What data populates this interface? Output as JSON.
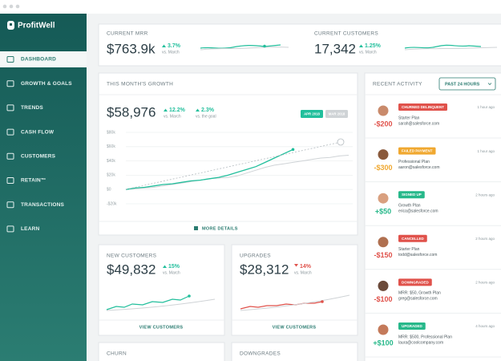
{
  "sidebar": {
    "logo": "ProfitWell",
    "nav": [
      "DASHBOARD",
      "GROWTH & GOALS",
      "TRENDS",
      "CASH FLOW",
      "CUSTOMERS",
      "RETAIN™",
      "TRANSACTIONS",
      "LEARN"
    ]
  },
  "summary": {
    "mrr": {
      "label": "CURRENT MRR",
      "value": "$763.9k",
      "change": "3.7%",
      "compare": "vs. March"
    },
    "customers": {
      "label": "CURRENT CUSTOMERS",
      "value": "17,342",
      "change": "1.25%",
      "compare": "vs. March"
    }
  },
  "growth": {
    "title": "THIS MONTH'S GROWTH",
    "value": "$58,976",
    "changes": [
      {
        "change": "12.2%",
        "compare": "vs. March"
      },
      {
        "change": "2.3%",
        "compare": "vs. the goal"
      }
    ],
    "link": "MORE DETAILS"
  },
  "chart_data": {
    "type": "line",
    "series": [
      {
        "name": "APR 2018",
        "color": "#22bf9c",
        "values": [
          0,
          2000,
          3000,
          5000,
          7000,
          8000,
          10000,
          12000,
          13000,
          15000,
          17000,
          20000,
          24000,
          28000,
          32000,
          38000,
          44000,
          50000,
          56000
        ]
      },
      {
        "name": "MAR 2018",
        "color": "#cfd3d6",
        "values": [
          0,
          1000,
          2000,
          3000,
          5000,
          7000,
          9000,
          11000,
          13000,
          15000,
          16000,
          17000,
          19000,
          23000,
          27000,
          31000,
          34000,
          36000,
          38000,
          40000,
          42000,
          44000,
          45000,
          47000,
          48000
        ]
      }
    ],
    "ylim": [
      -20000,
      80000
    ],
    "yticks": [
      {
        "value": -20000,
        "label": "-$20k"
      },
      {
        "value": 0,
        "label": "$0"
      },
      {
        "value": 20000,
        "label": "$20k"
      },
      {
        "value": 40000,
        "label": "$40k"
      },
      {
        "value": 60000,
        "label": "$60k"
      },
      {
        "value": 80000,
        "label": "$80k"
      }
    ],
    "grid": true
  },
  "new_customers": {
    "title": "NEW CUSTOMERS",
    "value": "$49,832",
    "change": "15%",
    "compare": "vs. March",
    "link": "VIEW CUSTOMERS"
  },
  "upgrades": {
    "title": "UPGRADES",
    "value": "$28,312",
    "change": "14%",
    "compare": "vs. March",
    "link": "VIEW CUSTOMERS"
  },
  "churn": {
    "title": "CHURN"
  },
  "downgrades": {
    "title": "DOWNGRADES"
  },
  "activity": {
    "title": "RECENT ACTIVITY",
    "filter": "PAST 24 HOURS",
    "items": [
      {
        "status": "CHURNED DELINQUENT",
        "amount": "-$200",
        "plan": "Starter Plan",
        "email": "sarah@salesforce.com",
        "time": "1 hour ago"
      },
      {
        "status": "FAILED PAYMENT",
        "amount": "-$300",
        "plan": "Professional Plan",
        "email": "aaron@salesforce.com",
        "time": "1 hour ago"
      },
      {
        "status": "SIGNED UP",
        "amount": "+$50",
        "plan": "Growth Plan",
        "email": "erica@salesforce.com",
        "time": "2 hours ago"
      },
      {
        "status": "CANCELLED",
        "amount": "-$150",
        "plan": "Starter Plan",
        "email": "todd@salesforce.com",
        "time": "2 hours ago"
      },
      {
        "status": "DOWNGRADED",
        "amount": "-$100",
        "plan": "MRR: $50, Growth Plan",
        "email": "greg@salesforce.com",
        "time": "2 hours ago"
      },
      {
        "status": "UPGRADED",
        "amount": "+$100",
        "plan": "MRR: $500, Professional Plan",
        "email": "laura@coolcompany.com",
        "time": "4 hours ago"
      }
    ]
  }
}
